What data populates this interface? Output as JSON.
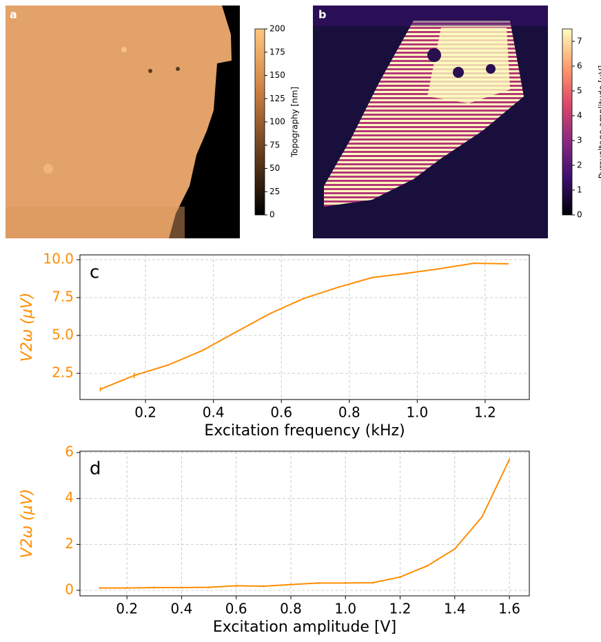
{
  "chart_data": [
    {
      "type": "heatmap",
      "panel_label": "a",
      "colorbar_label": "Topography [nm]",
      "clim": [
        0,
        200
      ],
      "cticks": [
        0,
        25,
        50,
        75,
        100,
        125,
        150,
        175,
        200
      ],
      "colormap": [
        "#000000",
        "#663f20",
        "#cc7f40",
        "#ffc77f"
      ]
    },
    {
      "type": "heatmap",
      "panel_label": "b",
      "colorbar_label": "Pyrovoltage amplitude [μV]",
      "clim": [
        0,
        7.5
      ],
      "cticks": [
        0,
        1,
        2,
        3,
        4,
        5,
        6,
        7
      ],
      "colormap": [
        "#000004",
        "#3b0f70",
        "#8c2981",
        "#de4968",
        "#fe9f6d",
        "#fcfdbf"
      ]
    },
    {
      "type": "line",
      "panel_label": "c",
      "xlabel": "Excitation frequency (kHz)",
      "ylabel": "V2ω (μV)",
      "color": "#ff8c00",
      "grid": true,
      "x": [
        0.067,
        0.167,
        0.267,
        0.367,
        0.467,
        0.567,
        0.667,
        0.767,
        0.867,
        0.967,
        1.067,
        1.167,
        1.267
      ],
      "values": [
        1.45,
        2.36,
        3.05,
        4.0,
        5.23,
        6.45,
        7.45,
        8.18,
        8.82,
        9.1,
        9.41,
        9.77,
        9.73
      ],
      "errors": [
        0.15,
        0.4,
        0.06,
        0.05,
        0.05,
        0.05,
        0.05,
        0.05,
        0.05,
        0.05,
        0.05,
        0.05,
        0.05
      ],
      "xlim": [
        0.007,
        1.33
      ],
      "ylim": [
        0.77,
        10.32
      ],
      "xticks": [
        0.2,
        0.4,
        0.6,
        0.8,
        {
          "value": 1,
          "label": "1.0"
        },
        1.2
      ],
      "yticks": [
        2.5,
        {
          "value": 5,
          "label": "5.0"
        },
        7.5,
        {
          "value": 10,
          "label": "10.0"
        }
      ]
    },
    {
      "type": "line",
      "panel_label": "d",
      "xlabel": "Excitation amplitude [V]",
      "ylabel": "V2ω (μV)",
      "color": "#ff8c00",
      "grid": true,
      "x": [
        0.1,
        0.2,
        0.3,
        0.4,
        0.5,
        0.6,
        0.7,
        0.8,
        0.9,
        1.0,
        1.1,
        1.2,
        1.3,
        1.4,
        1.5,
        1.6
      ],
      "values": [
        0.1,
        0.1,
        0.12,
        0.12,
        0.13,
        0.2,
        0.18,
        0.25,
        0.32,
        0.32,
        0.33,
        0.58,
        1.07,
        1.8,
        3.2,
        5.7
      ],
      "errors": [
        0.04,
        0.04,
        0.04,
        0.04,
        0.04,
        0.04,
        0.04,
        0.04,
        0.04,
        0.04,
        0.04,
        0.04,
        0.04,
        0.04,
        0.04,
        0.04
      ],
      "xlim": [
        0.028,
        1.673
      ],
      "ylim": [
        -0.24,
        6.06
      ],
      "xticks": [
        0.2,
        0.4,
        0.6,
        0.8,
        {
          "value": 1,
          "label": "1.0"
        },
        1.2,
        1.4,
        1.6
      ],
      "yticks": [
        0,
        2,
        4,
        6
      ]
    }
  ]
}
